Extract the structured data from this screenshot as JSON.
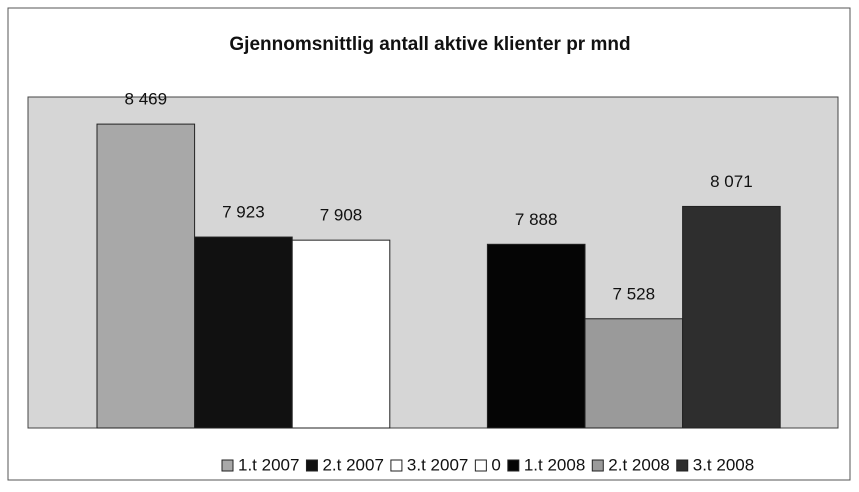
{
  "chart_data": {
    "type": "bar",
    "title": "Gjennomsnittlig antall aktive klienter pr mnd",
    "categories": [
      null
    ],
    "ylim": [
      7000,
      8600
    ],
    "series": [
      {
        "name": "1.t 2007",
        "color": "#a8a8a8",
        "values": [
          8469
        ],
        "value_labels": [
          "8 469"
        ]
      },
      {
        "name": "2.t 2007",
        "color": "#111111",
        "values": [
          7923
        ],
        "value_labels": [
          "7 923"
        ]
      },
      {
        "name": "3.t 2007",
        "color": "#ffffff",
        "values": [
          7908
        ],
        "value_labels": [
          "7 908"
        ]
      },
      {
        "name": "0",
        "color": "#ffffff",
        "values": [
          null
        ],
        "value_labels": [
          null
        ]
      },
      {
        "name": "1.t 2008",
        "color": "#050505",
        "values": [
          7888
        ],
        "value_labels": [
          "7 888"
        ]
      },
      {
        "name": "2.t 2008",
        "color": "#9a9a9a",
        "values": [
          7528
        ],
        "value_labels": [
          "7 528"
        ]
      },
      {
        "name": "3.t 2008",
        "color": "#2e2e2e",
        "values": [
          8071
        ],
        "value_labels": [
          "8 071"
        ]
      }
    ]
  }
}
